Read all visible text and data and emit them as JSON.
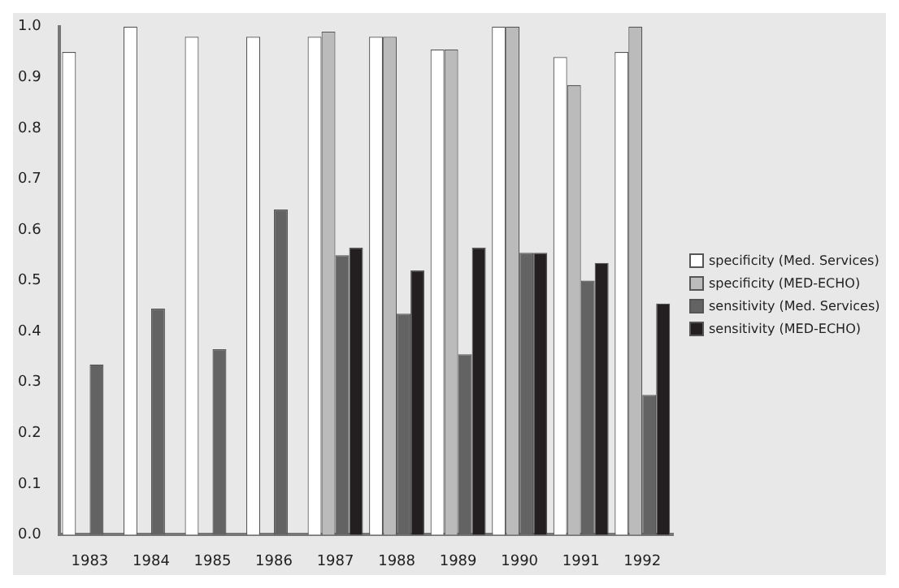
{
  "chart_data": {
    "type": "bar",
    "categories": [
      "1983",
      "1984",
      "1985",
      "1986",
      "1987",
      "1988",
      "1989",
      "1990",
      "1991",
      "1992"
    ],
    "series": [
      {
        "name": "specificity (Med. Services)",
        "color": "#ffffff",
        "values": [
          0.95,
          1.0,
          0.98,
          0.98,
          0.98,
          0.98,
          0.955,
          1.0,
          0.94,
          0.95
        ]
      },
      {
        "name": "specificity (MED-ECHO)",
        "color": "#bbbbbb",
        "values": [
          null,
          null,
          null,
          null,
          0.99,
          0.98,
          0.955,
          1.0,
          0.885,
          1.0
        ]
      },
      {
        "name": "sensitivity (Med. Services)",
        "color": "#636363",
        "values": [
          0.335,
          0.445,
          0.365,
          0.64,
          0.55,
          0.435,
          0.355,
          0.555,
          0.5,
          0.275
        ]
      },
      {
        "name": "sensitivity (MED-ECHO)",
        "color": "#231f20",
        "values": [
          null,
          null,
          null,
          null,
          0.565,
          0.52,
          0.565,
          0.555,
          0.535,
          0.455
        ]
      }
    ],
    "ylim": [
      0,
      1
    ],
    "yticks": [
      {
        "value": 0,
        "label": "0.0"
      },
      0.1,
      0.2,
      0.3,
      0.4,
      0.5,
      0.6,
      0.7,
      0.8,
      0.9,
      {
        "value": 1,
        "label": "1.0"
      }
    ],
    "grid": false,
    "legend": "right"
  }
}
